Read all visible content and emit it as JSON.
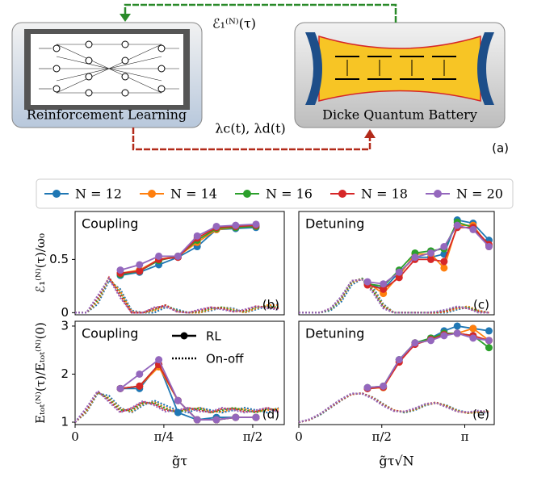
{
  "diagram": {
    "left_box": "Reinforcement Learning",
    "right_box": "Dicke Quantum Battery",
    "top_arrow_label": "ℰ₁⁽ᴺ⁾(τ)",
    "bottom_arrow_label": "λc(t), λd(t)",
    "panel_label": "(a)"
  },
  "chart_data": [
    {
      "type": "line",
      "title": "Coupling",
      "panel_label": "(b)",
      "y_label": "ℰ₁⁽ᴺ⁾(τ)/ω₀",
      "xlim": [
        0,
        1.85
      ],
      "ylim": [
        -0.02,
        0.95
      ],
      "yticks": [
        0,
        0.5
      ],
      "x": [
        0.4,
        0.57,
        0.74,
        0.91,
        1.08,
        1.25,
        1.42,
        1.6
      ],
      "series": [
        {
          "name": "N = 12",
          "color": "#1f77b4",
          "values": [
            0.35,
            0.38,
            0.45,
            0.52,
            0.62,
            0.78,
            0.79,
            0.8
          ]
        },
        {
          "name": "N = 14",
          "color": "#ff7f0e",
          "values": [
            0.37,
            0.4,
            0.5,
            0.53,
            0.66,
            0.78,
            0.8,
            0.81
          ]
        },
        {
          "name": "N = 16",
          "color": "#2ca02c",
          "values": [
            0.36,
            0.39,
            0.49,
            0.53,
            0.68,
            0.79,
            0.8,
            0.81
          ]
        },
        {
          "name": "N = 18",
          "color": "#d62728",
          "values": [
            0.37,
            0.39,
            0.5,
            0.52,
            0.7,
            0.8,
            0.81,
            0.82
          ]
        },
        {
          "name": "N = 20",
          "color": "#9467bd",
          "values": [
            0.4,
            0.45,
            0.53,
            0.53,
            0.72,
            0.81,
            0.82,
            0.83
          ]
        }
      ],
      "onoff_x": [
        0,
        0.1,
        0.2,
        0.3,
        0.4,
        0.5,
        0.6,
        0.7,
        0.8,
        0.9,
        1.0,
        1.1,
        1.2,
        1.3,
        1.4,
        1.5,
        1.6,
        1.7,
        1.8
      ],
      "onoff_series": [
        {
          "color": "#1f77b4",
          "values": [
            0,
            0,
            0.08,
            0.3,
            0.22,
            0.02,
            0,
            0,
            0.05,
            0.03,
            0,
            0,
            0.02,
            0.05,
            0.04,
            0,
            0.03,
            0.06,
            0.08
          ]
        },
        {
          "color": "#ff7f0e",
          "values": [
            0,
            0,
            0.1,
            0.32,
            0.2,
            0.01,
            0,
            0.02,
            0.06,
            0.02,
            0,
            0,
            0.03,
            0.05,
            0.03,
            0,
            0.04,
            0.07,
            0.07
          ]
        },
        {
          "color": "#2ca02c",
          "values": [
            0,
            0,
            0.12,
            0.33,
            0.18,
            0,
            0,
            0.03,
            0.07,
            0.02,
            0,
            0.01,
            0.04,
            0.05,
            0.02,
            0.01,
            0.05,
            0.06,
            0.05
          ]
        },
        {
          "color": "#d62728",
          "values": [
            0,
            0,
            0.14,
            0.33,
            0.16,
            0,
            0,
            0.04,
            0.07,
            0.01,
            0,
            0.02,
            0.05,
            0.04,
            0.01,
            0.02,
            0.06,
            0.05,
            0.04
          ]
        },
        {
          "color": "#9467bd",
          "values": [
            0,
            0,
            0.16,
            0.32,
            0.14,
            0,
            0,
            0.05,
            0.06,
            0.01,
            0,
            0.03,
            0.05,
            0.03,
            0.01,
            0.03,
            0.06,
            0.04,
            0.03
          ]
        }
      ]
    },
    {
      "type": "line",
      "title": "Detuning",
      "panel_label": "(c)",
      "xlim": [
        0,
        3.7
      ],
      "ylim": [
        -0.02,
        0.95
      ],
      "x": [
        1.3,
        1.6,
        1.9,
        2.2,
        2.5,
        2.75,
        3.0,
        3.3,
        3.6
      ],
      "series": [
        {
          "color": "#1f77b4",
          "values": [
            0.28,
            0.22,
            0.38,
            0.52,
            0.52,
            0.55,
            0.87,
            0.84,
            0.68
          ]
        },
        {
          "color": "#ff7f0e",
          "values": [
            0.28,
            0.18,
            0.35,
            0.55,
            0.55,
            0.42,
            0.82,
            0.82,
            0.62
          ]
        },
        {
          "color": "#2ca02c",
          "values": [
            0.27,
            0.25,
            0.4,
            0.56,
            0.58,
            0.6,
            0.85,
            0.8,
            0.63
          ]
        },
        {
          "color": "#d62728",
          "values": [
            0.26,
            0.22,
            0.33,
            0.5,
            0.5,
            0.48,
            0.8,
            0.8,
            0.64
          ]
        },
        {
          "color": "#9467bd",
          "values": [
            0.29,
            0.27,
            0.38,
            0.52,
            0.56,
            0.62,
            0.82,
            0.78,
            0.62
          ]
        }
      ],
      "onoff_x": [
        0,
        0.2,
        0.4,
        0.6,
        0.8,
        1.0,
        1.2,
        1.4,
        1.6,
        1.8,
        2.0,
        2.2,
        2.4,
        2.6,
        2.8,
        3.0,
        3.2,
        3.4,
        3.6
      ],
      "onoff_series": [
        {
          "color": "#1f77b4",
          "values": [
            0,
            0,
            0,
            0.02,
            0.1,
            0.26,
            0.32,
            0.24,
            0.08,
            0,
            0,
            0,
            0,
            0,
            0,
            0.03,
            0.05,
            0.02,
            0
          ]
        },
        {
          "color": "#ff7f0e",
          "values": [
            0,
            0,
            0,
            0.03,
            0.12,
            0.28,
            0.32,
            0.22,
            0.07,
            0,
            0,
            0,
            0,
            0,
            0.01,
            0.04,
            0.06,
            0.02,
            0
          ]
        },
        {
          "color": "#2ca02c",
          "values": [
            0,
            0,
            0,
            0.03,
            0.13,
            0.29,
            0.32,
            0.21,
            0.06,
            0,
            0,
            0,
            0,
            0,
            0.02,
            0.05,
            0.05,
            0.01,
            0
          ]
        },
        {
          "color": "#d62728",
          "values": [
            0,
            0,
            0,
            0.04,
            0.14,
            0.3,
            0.31,
            0.2,
            0.05,
            0,
            0,
            0,
            0,
            0,
            0.02,
            0.05,
            0.04,
            0.01,
            0
          ]
        },
        {
          "color": "#9467bd",
          "values": [
            0,
            0,
            0,
            0.04,
            0.15,
            0.3,
            0.31,
            0.19,
            0.04,
            0,
            0,
            0,
            0,
            0.01,
            0.03,
            0.06,
            0.04,
            0,
            0
          ]
        }
      ]
    },
    {
      "type": "line",
      "title": "Coupling",
      "panel_label": "(d)",
      "y_label": "Eₜₒₜ⁽ᴺ⁾(τ)/Eₜₒₜ⁽ᴺ⁾(0)",
      "x_label": "g̃τ",
      "style_legend": [
        "RL",
        "On-off"
      ],
      "xlim": [
        0,
        1.85
      ],
      "ylim": [
        0.95,
        3.1
      ],
      "yticks": [
        1,
        2,
        3
      ],
      "xticks": [
        0,
        {
          "value": 0.785,
          "label": "π/4"
        },
        {
          "value": 1.571,
          "label": "π/2"
        }
      ],
      "x": [
        0.4,
        0.57,
        0.74,
        0.91,
        1.08,
        1.25,
        1.42,
        1.6
      ],
      "series": [
        {
          "color": "#1f77b4",
          "values": [
            1.7,
            1.7,
            2.2,
            1.2,
            1.05,
            1.1,
            1.1,
            1.1
          ]
        },
        {
          "color": "#ff7f0e",
          "values": [
            1.7,
            1.75,
            2.15,
            1.45,
            1.05,
            1.05,
            1.1,
            1.1
          ]
        },
        {
          "color": "#2ca02c",
          "values": [
            1.7,
            1.75,
            2.2,
            1.45,
            1.05,
            1.05,
            1.1,
            1.1
          ]
        },
        {
          "color": "#d62728",
          "values": [
            1.7,
            1.75,
            2.2,
            1.45,
            1.05,
            1.05,
            1.1,
            1.1
          ]
        },
        {
          "color": "#9467bd",
          "values": [
            1.7,
            2.0,
            2.3,
            1.45,
            1.05,
            1.05,
            1.1,
            1.1
          ]
        }
      ],
      "onoff_x": [
        0,
        0.1,
        0.2,
        0.3,
        0.4,
        0.5,
        0.6,
        0.7,
        0.8,
        0.9,
        1.0,
        1.1,
        1.2,
        1.3,
        1.4,
        1.5,
        1.6,
        1.7,
        1.8
      ],
      "onoff_series": [
        {
          "color": "#1f77b4",
          "values": [
            1,
            1.2,
            1.6,
            1.55,
            1.3,
            1.2,
            1.35,
            1.45,
            1.35,
            1.25,
            1.2,
            1.3,
            1.25,
            1.2,
            1.25,
            1.3,
            1.25,
            1.2,
            1.3
          ]
        },
        {
          "color": "#ff7f0e",
          "values": [
            1,
            1.22,
            1.62,
            1.5,
            1.28,
            1.22,
            1.38,
            1.42,
            1.3,
            1.22,
            1.25,
            1.3,
            1.22,
            1.22,
            1.28,
            1.27,
            1.22,
            1.25,
            1.28
          ]
        },
        {
          "color": "#2ca02c",
          "values": [
            1,
            1.25,
            1.63,
            1.48,
            1.25,
            1.25,
            1.4,
            1.4,
            1.28,
            1.2,
            1.28,
            1.28,
            1.2,
            1.25,
            1.3,
            1.25,
            1.2,
            1.28,
            1.25
          ]
        },
        {
          "color": "#d62728",
          "values": [
            1,
            1.27,
            1.64,
            1.45,
            1.22,
            1.28,
            1.42,
            1.38,
            1.25,
            1.22,
            1.3,
            1.25,
            1.2,
            1.28,
            1.28,
            1.22,
            1.22,
            1.3,
            1.22
          ]
        },
        {
          "color": "#9467bd",
          "values": [
            1,
            1.3,
            1.65,
            1.42,
            1.2,
            1.3,
            1.44,
            1.35,
            1.22,
            1.25,
            1.3,
            1.22,
            1.22,
            1.3,
            1.25,
            1.2,
            1.25,
            1.3,
            1.2
          ]
        }
      ]
    },
    {
      "type": "line",
      "title": "Detuning",
      "panel_label": "(e)",
      "x_label": "g̃τ√N",
      "xlim": [
        0,
        3.7
      ],
      "ylim": [
        0.95,
        3.1
      ],
      "xticks": [
        0,
        {
          "value": 1.571,
          "label": "π/2"
        },
        {
          "value": 3.142,
          "label": "π"
        }
      ],
      "x": [
        1.3,
        1.6,
        1.9,
        2.2,
        2.5,
        2.75,
        3.0,
        3.3,
        3.6
      ],
      "series": [
        {
          "color": "#1f77b4",
          "values": [
            1.7,
            1.72,
            2.3,
            2.65,
            2.75,
            2.9,
            3.0,
            2.95,
            2.9
          ]
        },
        {
          "color": "#ff7f0e",
          "values": [
            1.7,
            1.72,
            2.25,
            2.65,
            2.72,
            2.85,
            2.85,
            2.95,
            2.7
          ]
        },
        {
          "color": "#2ca02c",
          "values": [
            1.72,
            1.75,
            2.3,
            2.65,
            2.75,
            2.85,
            2.85,
            2.8,
            2.55
          ]
        },
        {
          "color": "#d62728",
          "values": [
            1.7,
            1.73,
            2.25,
            2.62,
            2.72,
            2.82,
            2.85,
            2.8,
            2.7
          ]
        },
        {
          "color": "#9467bd",
          "values": [
            1.72,
            1.75,
            2.3,
            2.65,
            2.7,
            2.8,
            2.85,
            2.75,
            2.7
          ]
        }
      ],
      "onoff_x": [
        0,
        0.2,
        0.4,
        0.6,
        0.8,
        1.0,
        1.2,
        1.4,
        1.6,
        1.8,
        2.0,
        2.2,
        2.4,
        2.6,
        2.8,
        3.0,
        3.2,
        3.4,
        3.6
      ],
      "onoff_series": [
        {
          "color": "#1f77b4",
          "values": [
            1,
            1.05,
            1.15,
            1.3,
            1.45,
            1.58,
            1.6,
            1.52,
            1.38,
            1.25,
            1.2,
            1.25,
            1.35,
            1.4,
            1.35,
            1.25,
            1.2,
            1.2,
            1.2
          ]
        },
        {
          "color": "#ff7f0e",
          "values": [
            1,
            1.05,
            1.16,
            1.31,
            1.46,
            1.58,
            1.6,
            1.51,
            1.37,
            1.25,
            1.21,
            1.26,
            1.36,
            1.4,
            1.34,
            1.24,
            1.19,
            1.21,
            1.22
          ]
        },
        {
          "color": "#2ca02c",
          "values": [
            1,
            1.05,
            1.16,
            1.32,
            1.47,
            1.59,
            1.6,
            1.5,
            1.36,
            1.24,
            1.21,
            1.27,
            1.37,
            1.41,
            1.33,
            1.23,
            1.19,
            1.22,
            1.23
          ]
        },
        {
          "color": "#d62728",
          "values": [
            1,
            1.05,
            1.17,
            1.32,
            1.47,
            1.59,
            1.6,
            1.5,
            1.35,
            1.24,
            1.22,
            1.28,
            1.38,
            1.41,
            1.32,
            1.22,
            1.2,
            1.23,
            1.22
          ]
        },
        {
          "color": "#9467bd",
          "values": [
            1,
            1.06,
            1.17,
            1.33,
            1.48,
            1.6,
            1.59,
            1.49,
            1.34,
            1.23,
            1.22,
            1.29,
            1.38,
            1.4,
            1.31,
            1.22,
            1.21,
            1.24,
            1.21
          ]
        }
      ]
    }
  ]
}
